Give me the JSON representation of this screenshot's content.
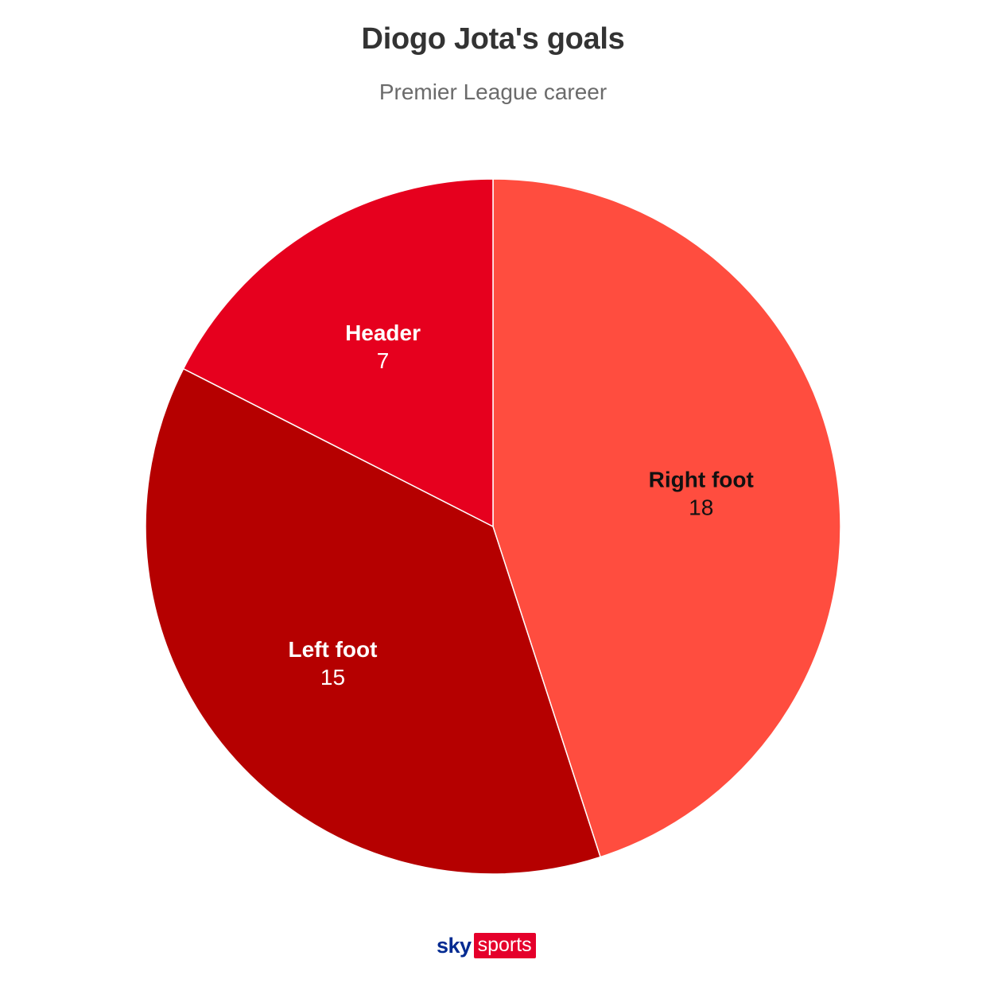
{
  "chart_data": {
    "type": "pie",
    "title": "Diogo Jota's goals",
    "subtitle": "Premier League career",
    "slices": [
      {
        "label": "Right foot",
        "value": 18,
        "color": "#ff4d3f",
        "label_color": "#111111"
      },
      {
        "label": "Left foot",
        "value": 15,
        "color": "#b50000",
        "label_color": "#ffffff"
      },
      {
        "label": "Header",
        "value": 7,
        "color": "#e6001e",
        "label_color": "#ffffff"
      }
    ],
    "start": "12 o'clock",
    "direction": "clockwise"
  },
  "branding": {
    "logo_sky": "sky",
    "logo_sports": "sports"
  }
}
